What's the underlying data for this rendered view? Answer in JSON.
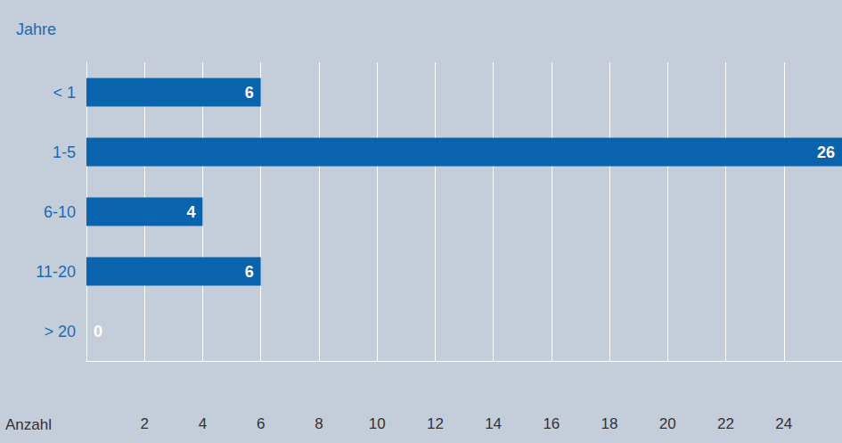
{
  "chart_data": {
    "type": "bar",
    "orientation": "horizontal",
    "y_label": "Jahre",
    "x_label": "Anzahl",
    "categories": [
      "< 1",
      "1-5",
      "6-10",
      "11-20",
      "> 20"
    ],
    "values": [
      6,
      26,
      4,
      6,
      0
    ],
    "color": "#0a64ad",
    "xlim": [
      0,
      26
    ],
    "xticks": [
      2,
      4,
      6,
      8,
      10,
      12,
      14,
      16,
      18,
      20,
      22,
      24
    ],
    "grid": true,
    "data_labels": true
  }
}
